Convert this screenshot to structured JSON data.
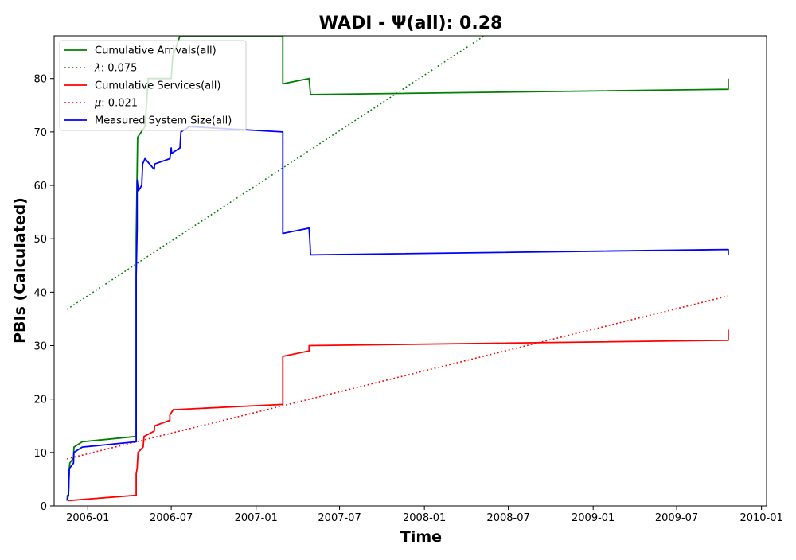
{
  "chart_data": {
    "type": "line",
    "title": "WADI -  Ψ(all): 0.28",
    "xlabel": "Time",
    "ylabel": "PBIs (Calculated)",
    "xlim": [
      "2005-10-20",
      "2010-01-12"
    ],
    "ylim": [
      0,
      88
    ],
    "x_ticks": [
      "2006-01",
      "2006-07",
      "2007-01",
      "2007-07",
      "2008-01",
      "2008-07",
      "2009-01",
      "2009-07",
      "2010-01"
    ],
    "y_ticks": [
      0,
      10,
      20,
      30,
      40,
      50,
      60,
      70,
      80
    ],
    "grid": false,
    "legend_position": "upper-left",
    "series": [
      {
        "name": "Cumulative Arrivals(all)",
        "color": "#008000",
        "style": "solid",
        "points": [
          [
            "2005-11-17",
            1
          ],
          [
            "2005-11-18",
            2
          ],
          [
            "2005-11-20",
            2
          ],
          [
            "2005-11-22",
            7
          ],
          [
            "2005-11-23",
            8
          ],
          [
            "2005-12-01",
            9
          ],
          [
            "2005-12-02",
            11
          ],
          [
            "2005-12-20",
            12
          ],
          [
            "2006-04-16",
            13
          ],
          [
            "2006-04-16",
            50
          ],
          [
            "2006-04-19",
            69
          ],
          [
            "2006-05-05",
            71
          ],
          [
            "2006-05-12",
            80
          ],
          [
            "2006-07-01",
            80
          ],
          [
            "2006-07-04",
            84
          ],
          [
            "2006-07-20",
            88
          ],
          [
            "2007-02-28",
            88
          ],
          [
            "2007-02-28",
            79
          ],
          [
            "2007-04-26",
            80
          ],
          [
            "2007-04-28",
            78
          ],
          [
            "2007-04-29",
            77
          ],
          [
            "2009-10-21",
            78
          ],
          [
            "2009-10-21",
            80
          ]
        ]
      },
      {
        "name": "λ: 0.075",
        "label_greek": "λ",
        "label_value": ": 0.075",
        "color": "#008000",
        "style": "dotted",
        "points": [
          [
            "2005-11-17",
            36.8
          ],
          [
            "2008-05-10",
            88
          ]
        ]
      },
      {
        "name": "Cumulative Services(all)",
        "color": "#ff0000",
        "style": "solid",
        "points": [
          [
            "2005-11-20",
            1
          ],
          [
            "2006-04-16",
            2
          ],
          [
            "2006-04-16",
            6
          ],
          [
            "2006-04-18",
            7
          ],
          [
            "2006-04-20",
            10
          ],
          [
            "2006-05-01",
            11
          ],
          [
            "2006-05-03",
            13
          ],
          [
            "2006-05-25",
            14
          ],
          [
            "2006-05-26",
            15
          ],
          [
            "2006-06-28",
            16
          ],
          [
            "2006-06-28",
            17
          ],
          [
            "2006-07-05",
            18
          ],
          [
            "2007-02-28",
            19
          ],
          [
            "2007-02-28",
            28
          ],
          [
            "2007-04-26",
            29
          ],
          [
            "2007-04-26",
            30
          ],
          [
            "2009-10-21",
            31
          ],
          [
            "2009-10-21",
            33
          ]
        ]
      },
      {
        "name": "μ: 0.021",
        "label_greek": "μ",
        "label_value": ": 0.021",
        "color": "#ff0000",
        "style": "dotted",
        "points": [
          [
            "2005-11-17",
            8.8
          ],
          [
            "2009-10-21",
            39.3
          ]
        ]
      },
      {
        "name": "Measured System Size(all)",
        "color": "#0000ff",
        "style": "solid",
        "points": [
          [
            "2005-11-17",
            1
          ],
          [
            "2005-11-20",
            2
          ],
          [
            "2005-11-22",
            7
          ],
          [
            "2005-12-01",
            8
          ],
          [
            "2005-12-02",
            10
          ],
          [
            "2005-12-20",
            11
          ],
          [
            "2006-04-16",
            12
          ],
          [
            "2006-04-16",
            27
          ],
          [
            "2006-04-16",
            43
          ],
          [
            "2006-04-18",
            52
          ],
          [
            "2006-04-18",
            61
          ],
          [
            "2006-04-21",
            59
          ],
          [
            "2006-04-28",
            60
          ],
          [
            "2006-04-30",
            64
          ],
          [
            "2006-05-05",
            65
          ],
          [
            "2006-05-25",
            63
          ],
          [
            "2006-05-26",
            64
          ],
          [
            "2006-06-28",
            65
          ],
          [
            "2006-07-01",
            67
          ],
          [
            "2006-07-02",
            66
          ],
          [
            "2006-07-20",
            67
          ],
          [
            "2006-07-22",
            70
          ],
          [
            "2006-08-10",
            71
          ],
          [
            "2007-02-28",
            70
          ],
          [
            "2007-02-28",
            51
          ],
          [
            "2007-04-26",
            52
          ],
          [
            "2007-04-28",
            49
          ],
          [
            "2007-04-29",
            47
          ],
          [
            "2009-10-21",
            48
          ],
          [
            "2009-10-21",
            47
          ]
        ]
      }
    ]
  }
}
